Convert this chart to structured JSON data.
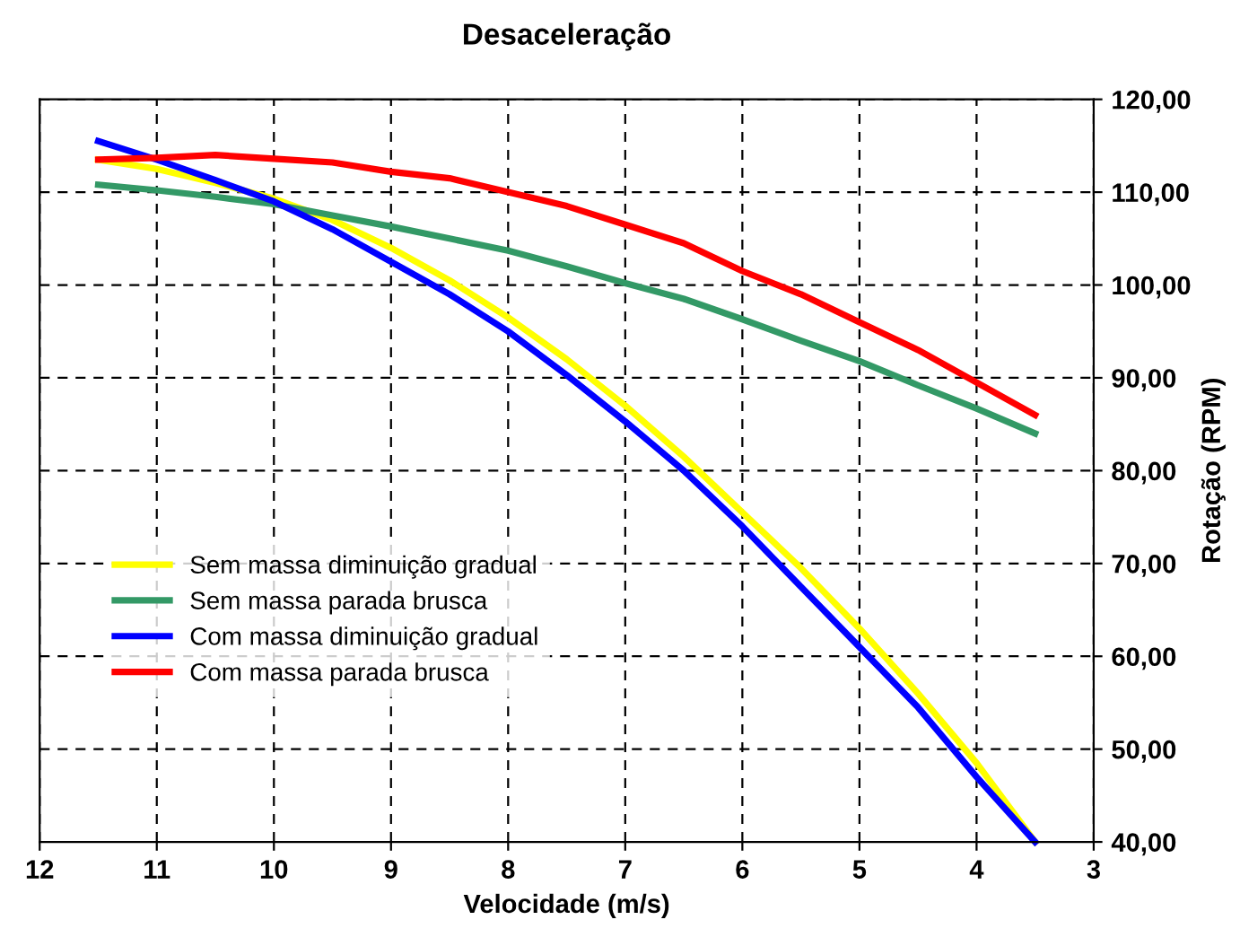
{
  "chart_data": {
    "type": "line",
    "title": "Desaceleração",
    "xlabel": "Velocidade (m/s)",
    "ylabel": "Rotação (RPM)",
    "x": [
      11.5,
      11,
      10.5,
      10,
      9.5,
      9,
      8.5,
      8,
      7.5,
      7,
      6.5,
      6,
      5.5,
      5,
      4.5,
      4,
      3.5
    ],
    "series": [
      {
        "name": "Sem massa diminuição gradual",
        "color": "#ffff00",
        "values": [
          113.5,
          112.5,
          111,
          109.3,
          107,
          104,
          100.5,
          96.5,
          92,
          87,
          81.5,
          75.5,
          69.5,
          63,
          56,
          48.5,
          40
        ]
      },
      {
        "name": "Sem massa parada brusca",
        "color": "#339966",
        "values": [
          110.8,
          110.2,
          109.5,
          108.7,
          107.5,
          106.3,
          105,
          103.7,
          102,
          100.2,
          98.5,
          96.3,
          94,
          91.8,
          89.2,
          86.7,
          84
        ]
      },
      {
        "name": "Com massa diminuição gradual",
        "color": "#0000ff",
        "values": [
          115.5,
          113.5,
          111.3,
          109,
          106,
          102.5,
          99,
          95,
          90.3,
          85.3,
          80,
          74,
          67.5,
          61,
          54.5,
          47,
          40
        ]
      },
      {
        "name": "Com massa parada brusca",
        "color": "#ff0000",
        "values": [
          113.5,
          113.7,
          114,
          113.6,
          113.2,
          112.2,
          111.5,
          110,
          108.5,
          106.5,
          104.5,
          101.5,
          99,
          96,
          93,
          89.5,
          86
        ]
      }
    ],
    "xlim": [
      12,
      3
    ],
    "xticks": [
      12,
      11,
      10,
      9,
      8,
      7,
      6,
      5,
      4,
      3
    ],
    "ylim": [
      40,
      120
    ],
    "yticks": [
      {
        "value": 40,
        "label": "40,00"
      },
      {
        "value": 50,
        "label": "50,00"
      },
      {
        "value": 60,
        "label": "60,00"
      },
      {
        "value": 70,
        "label": "70,00"
      },
      {
        "value": 80,
        "label": "80,00"
      },
      {
        "value": 90,
        "label": "90,00"
      },
      {
        "value": 100,
        "label": "100,00"
      },
      {
        "value": 110,
        "label": "110,00"
      },
      {
        "value": 120,
        "label": "120,00"
      }
    ],
    "grid": true,
    "legend": "bottom left",
    "marker": "none",
    "line_style": "solid"
  }
}
